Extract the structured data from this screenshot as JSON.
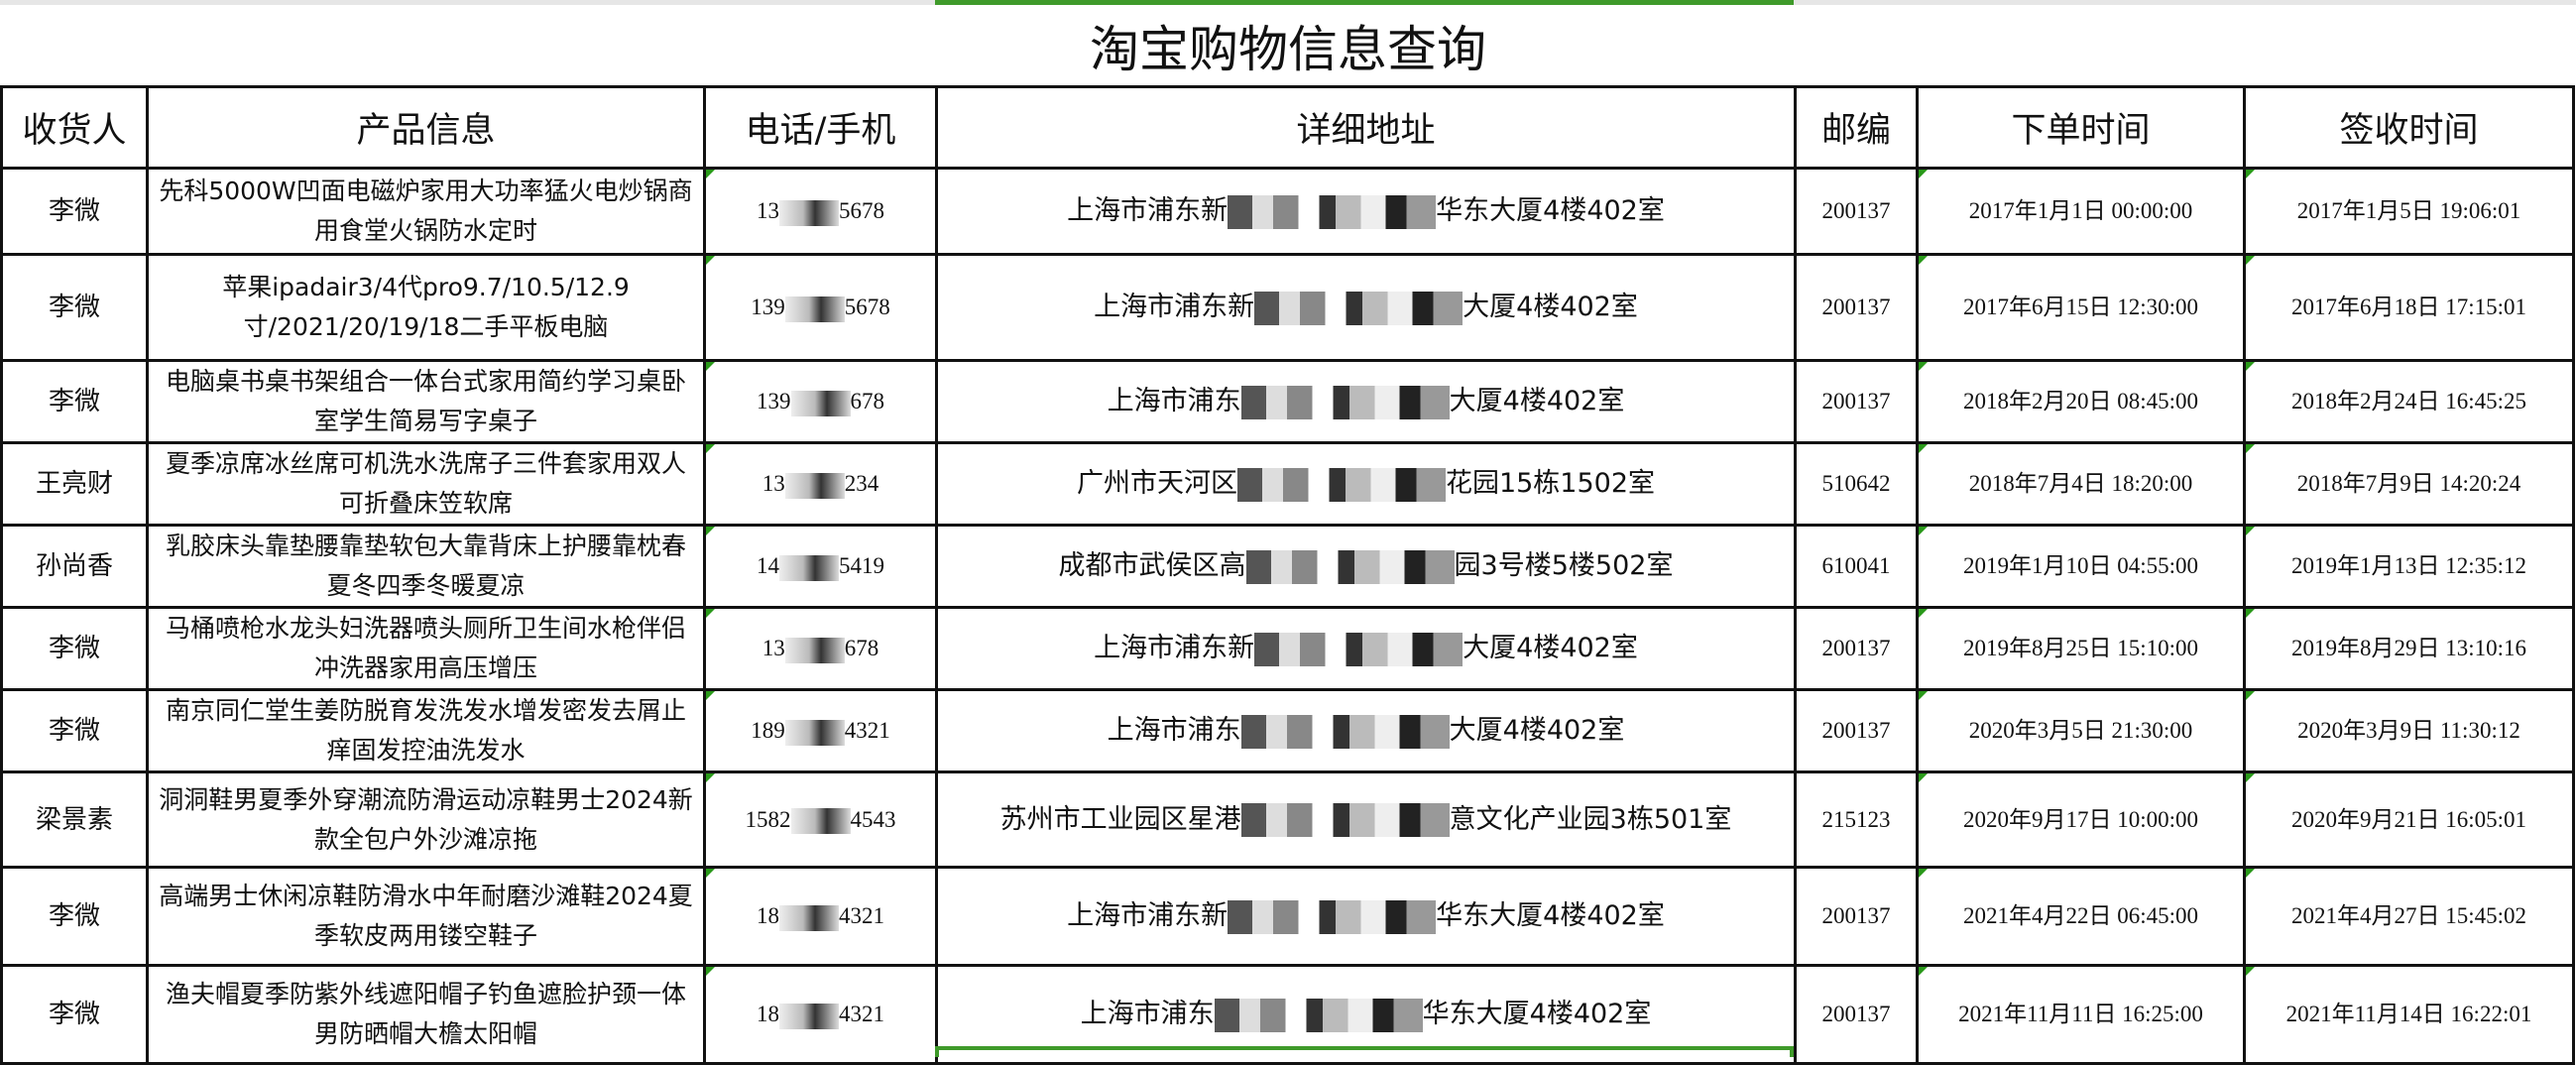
{
  "title": "淘宝购物信息查询",
  "colors": {
    "accent": "#3f9a2a",
    "border": "#111111"
  },
  "columns": [
    "收货人",
    "产品信息",
    "电话/手机",
    "详细地址",
    "邮编",
    "下单时间",
    "签收时间"
  ],
  "rows": [
    {
      "name": "李微",
      "product": "先科5000W凹面电磁炉家用大功率猛火电炒锅商用食堂火锅防水定时",
      "phone_a": "13",
      "phone_b": "5678",
      "addr_a": "上海市浦东新",
      "addr_b": "华东大厦4楼402室",
      "zip": "200137",
      "order": "2017年1月1日  00:00:00",
      "sign": "2017年1月5日  19:06:01"
    },
    {
      "name": "李微",
      "product": "苹果ipadair3/4代pro9.7/10.5/12.9寸/2021/20/19/18二手平板电脑",
      "phone_a": "139",
      "phone_b": "5678",
      "addr_a": "上海市浦东新",
      "addr_b": "大厦4楼402室",
      "zip": "200137",
      "order": "2017年6月15日  12:30:00",
      "sign": "2017年6月18日  17:15:01"
    },
    {
      "name": "李微",
      "product": "电脑桌书桌书架组合一体台式家用简约学习桌卧室学生简易写字桌子",
      "phone_a": "139",
      "phone_b": "678",
      "addr_a": "上海市浦东",
      "addr_b": "大厦4楼402室",
      "zip": "200137",
      "order": "2018年2月20日  08:45:00",
      "sign": "2018年2月24日  16:45:25"
    },
    {
      "name": "王亮财",
      "product": "夏季凉席冰丝席可机洗水洗席子三件套家用双人可折叠床笠软席",
      "phone_a": "13",
      "phone_b": "234",
      "addr_a": "广州市天河区",
      "addr_b": "花园15栋1502室",
      "zip": "510642",
      "order": "2018年7月4日  18:20:00",
      "sign": "2018年7月9日  14:20:24"
    },
    {
      "name": "孙尚香",
      "product": "乳胶床头靠垫腰靠垫软包大靠背床上护腰靠枕春夏冬四季冬暖夏凉",
      "phone_a": "14",
      "phone_b": "5419",
      "addr_a": "成都市武侯区高",
      "addr_b": "园3号楼5楼502室",
      "zip": "610041",
      "order": "2019年1月10日  04:55:00",
      "sign": "2019年1月13日  12:35:12"
    },
    {
      "name": "李微",
      "product": "马桶喷枪水龙头妇洗器喷头厕所卫生间水枪伴侣冲洗器家用高压增压",
      "phone_a": "13",
      "phone_b": "678",
      "addr_a": "上海市浦东新",
      "addr_b": "大厦4楼402室",
      "zip": "200137",
      "order": "2019年8月25日  15:10:00",
      "sign": "2019年8月29日  13:10:16"
    },
    {
      "name": "李微",
      "product": "南京同仁堂生姜防脱育发洗发水增发密发去屑止痒固发控油洗发水",
      "phone_a": "189",
      "phone_b": "4321",
      "addr_a": "上海市浦东",
      "addr_b": "大厦4楼402室",
      "zip": "200137",
      "order": "2020年3月5日  21:30:00",
      "sign": "2020年3月9日  11:30:12"
    },
    {
      "name": "梁景素",
      "product": "洞洞鞋男夏季外穿潮流防滑运动凉鞋男士2024新款全包户外沙滩凉拖",
      "phone_a": "1582",
      "phone_b": "4543",
      "addr_a": "苏州市工业园区星港",
      "addr_b": "意文化产业园3栋501室",
      "zip": "215123",
      "order": "2020年9月17日  10:00:00",
      "sign": "2020年9月21日  16:05:01"
    },
    {
      "name": "李微",
      "product": "高端男士休闲凉鞋防滑水中年耐磨沙滩鞋2024夏季软皮两用镂空鞋子",
      "phone_a": "18",
      "phone_b": "4321",
      "addr_a": "上海市浦东新",
      "addr_b": "华东大厦4楼402室",
      "zip": "200137",
      "order": "2021年4月22日  06:45:00",
      "sign": "2021年4月27日  15:45:02"
    },
    {
      "name": "李微",
      "product": "渔夫帽夏季防紫外线遮阳帽子钓鱼遮脸护颈一体男防晒帽大檐太阳帽",
      "phone_a": "18",
      "phone_b": "4321",
      "addr_a": "上海市浦东",
      "addr_b": "华东大厦4楼402室",
      "zip": "200137",
      "order": "2021年11月11日  16:25:00",
      "sign": "2021年11月14日  16:22:01"
    }
  ]
}
